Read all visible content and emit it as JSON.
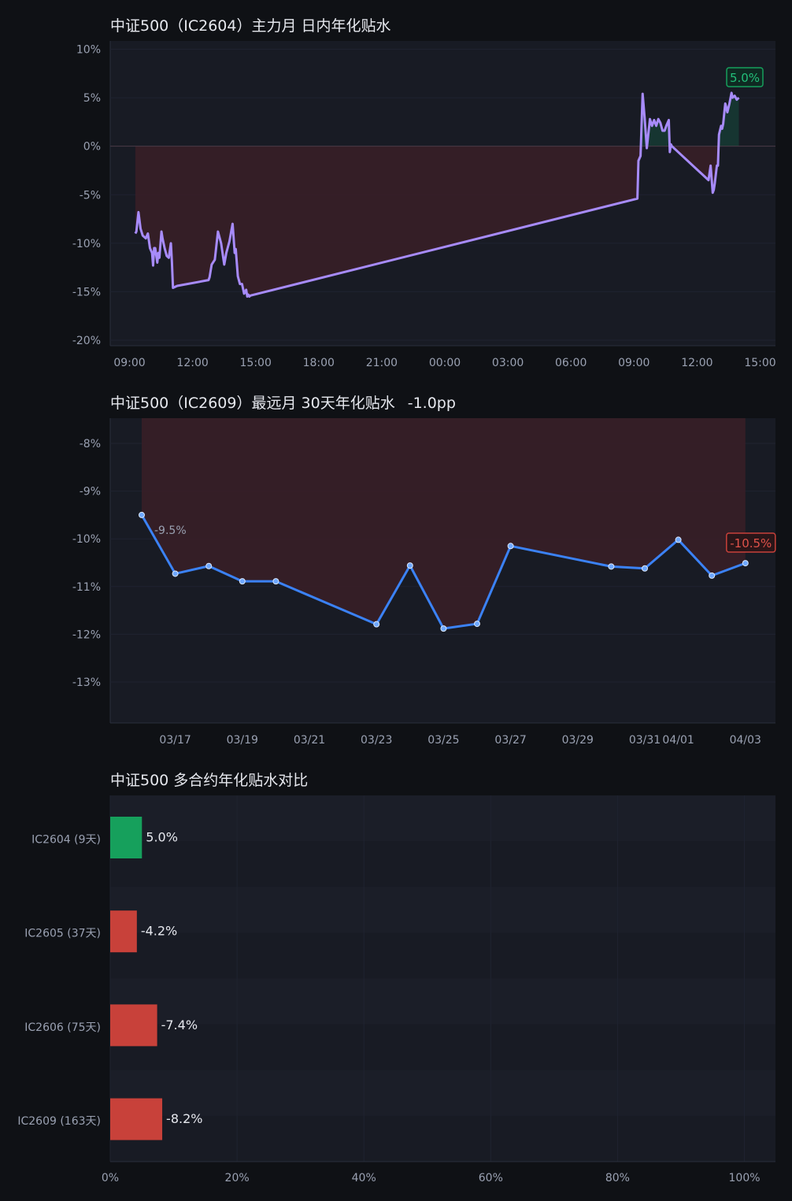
{
  "colors": {
    "background": "#0f1115",
    "panel": "#181b24",
    "title_text": "#e6e8ee",
    "tick_text": "#9aa1b2",
    "line1": "#a78bfa",
    "line2": "#3b82f6",
    "positive": "#16a05c",
    "negative": "#c8413a",
    "fill_positive": "#163a34",
    "fill_negative": "#3a1f27"
  },
  "chart_data": [
    {
      "type": "line",
      "title": "中证500（IC2604）主力月 日内年化贴水",
      "x_ticks": [
        "09:00",
        "12:00",
        "15:00",
        "18:00",
        "21:00",
        "00:00",
        "03:00",
        "06:00",
        "09:00",
        "12:00",
        "15:00"
      ],
      "y_ticks": [
        "10%",
        "5%",
        "0%",
        "-5%",
        "-10%",
        "-15%",
        "-20%"
      ],
      "ylim": [
        -20,
        10
      ],
      "x_domain_hours": [
        8.3,
        40.1
      ],
      "baseline": 0,
      "last_label": "5.0%",
      "series": [
        {
          "x": [
            9.5,
            9.55,
            9.65,
            9.75,
            9.85,
            10.0,
            10.1,
            10.2,
            10.3,
            10.35,
            10.4,
            10.45,
            10.55,
            10.6,
            10.65,
            10.75,
            10.8,
            10.9,
            11.0,
            11.1,
            11.2,
            11.25,
            11.3,
            11.5,
            13.0,
            13.05,
            13.15,
            13.3,
            13.45,
            13.6,
            13.75,
            13.85,
            14.0,
            14.15,
            14.25,
            14.3,
            14.4,
            14.5,
            14.6,
            14.7,
            14.8,
            14.85,
            14.9,
            14.95,
            15.0,
            33.5,
            33.55,
            33.65,
            33.75,
            33.85,
            33.95,
            34.0,
            34.1,
            34.2,
            34.3,
            34.4,
            34.5,
            34.6,
            34.7,
            34.8,
            34.9,
            35.0,
            35.05,
            35.1,
            35.15,
            36.9,
            37.0,
            37.05,
            37.1,
            37.15,
            37.2,
            37.3,
            37.35,
            37.4,
            37.5,
            37.55,
            37.6,
            37.7,
            37.75,
            37.8,
            37.9,
            38.0,
            38.05,
            38.15,
            38.25,
            38.35
          ],
          "y": [
            -9.0,
            -8.8,
            -6.8,
            -8.5,
            -9.2,
            -9.5,
            -9.0,
            -10.5,
            -11.0,
            -12.3,
            -10.5,
            -10.5,
            -12.0,
            -11.0,
            -11.5,
            -8.8,
            -9.5,
            -10.5,
            -11.3,
            -11.5,
            -10.0,
            -12.0,
            -14.6,
            -14.4,
            -13.8,
            -13.5,
            -12.2,
            -11.7,
            -8.8,
            -10.0,
            -12.2,
            -11.0,
            -9.8,
            -8.0,
            -11.0,
            -10.6,
            -13.4,
            -14.2,
            -14.2,
            -15.2,
            -14.8,
            -15.5,
            -15.3,
            -15.5,
            -15.4,
            -5.4,
            -1.5,
            -1.0,
            5.4,
            2.8,
            -0.2,
            0.8,
            2.8,
            2.1,
            2.7,
            2.1,
            2.8,
            2.4,
            1.6,
            1.6,
            2.2,
            2.7,
            -0.6,
            0.2,
            0.0,
            -3.5,
            -2.0,
            -3.4,
            -4.8,
            -4.5,
            -3.8,
            -2.0,
            -2.0,
            1.2,
            2.1,
            1.8,
            2.3,
            4.4,
            4.0,
            3.5,
            4.4,
            5.5,
            5.0,
            5.2,
            4.8,
            5.0
          ]
        }
      ]
    },
    {
      "type": "line",
      "title": "中证500（IC2609）最远月 30天年化贴水",
      "change": "-1.0pp",
      "x_ticks": [
        "03/17",
        "03/19",
        "03/21",
        "03/23",
        "03/25",
        "03/27",
        "03/29",
        "03/31",
        "04/01",
        "04/03"
      ],
      "y_ticks": [
        "-8%",
        "-9%",
        "-10%",
        "-11%",
        "-12%",
        "-13%"
      ],
      "ylim": [
        -13.85,
        -7.5
      ],
      "first_label": "-9.5%",
      "last_label": "-10.5%",
      "series": [
        {
          "x": [
            "03/16",
            "03/17",
            "03/18",
            "03/19",
            "03/20",
            "03/23",
            "03/24",
            "03/25",
            "03/26",
            "03/27",
            "03/30",
            "03/31",
            "04/01",
            "04/02",
            "04/03"
          ],
          "y": [
            -9.5,
            -10.73,
            -10.57,
            -10.89,
            -10.89,
            -11.79,
            -10.56,
            -11.88,
            -11.78,
            -10.15,
            -10.58,
            -10.62,
            -10.02,
            -10.77,
            -10.51
          ]
        }
      ]
    },
    {
      "type": "bar",
      "orientation": "horizontal",
      "title": "中证500 多合约年化贴水对比",
      "categories": [
        "IC2604 (9天)",
        "IC2605 (37天)",
        "IC2606 (75天)",
        "IC2609 (163天)"
      ],
      "values": [
        5.0,
        -4.2,
        -7.4,
        -8.2
      ],
      "value_labels": [
        "5.0%",
        "-4.2%",
        "-7.4%",
        "-8.2%"
      ],
      "x_ticks": [
        "0%",
        "20%",
        "40%",
        "60%",
        "80%",
        "100%"
      ],
      "xlim": [
        0,
        104.9
      ]
    }
  ]
}
